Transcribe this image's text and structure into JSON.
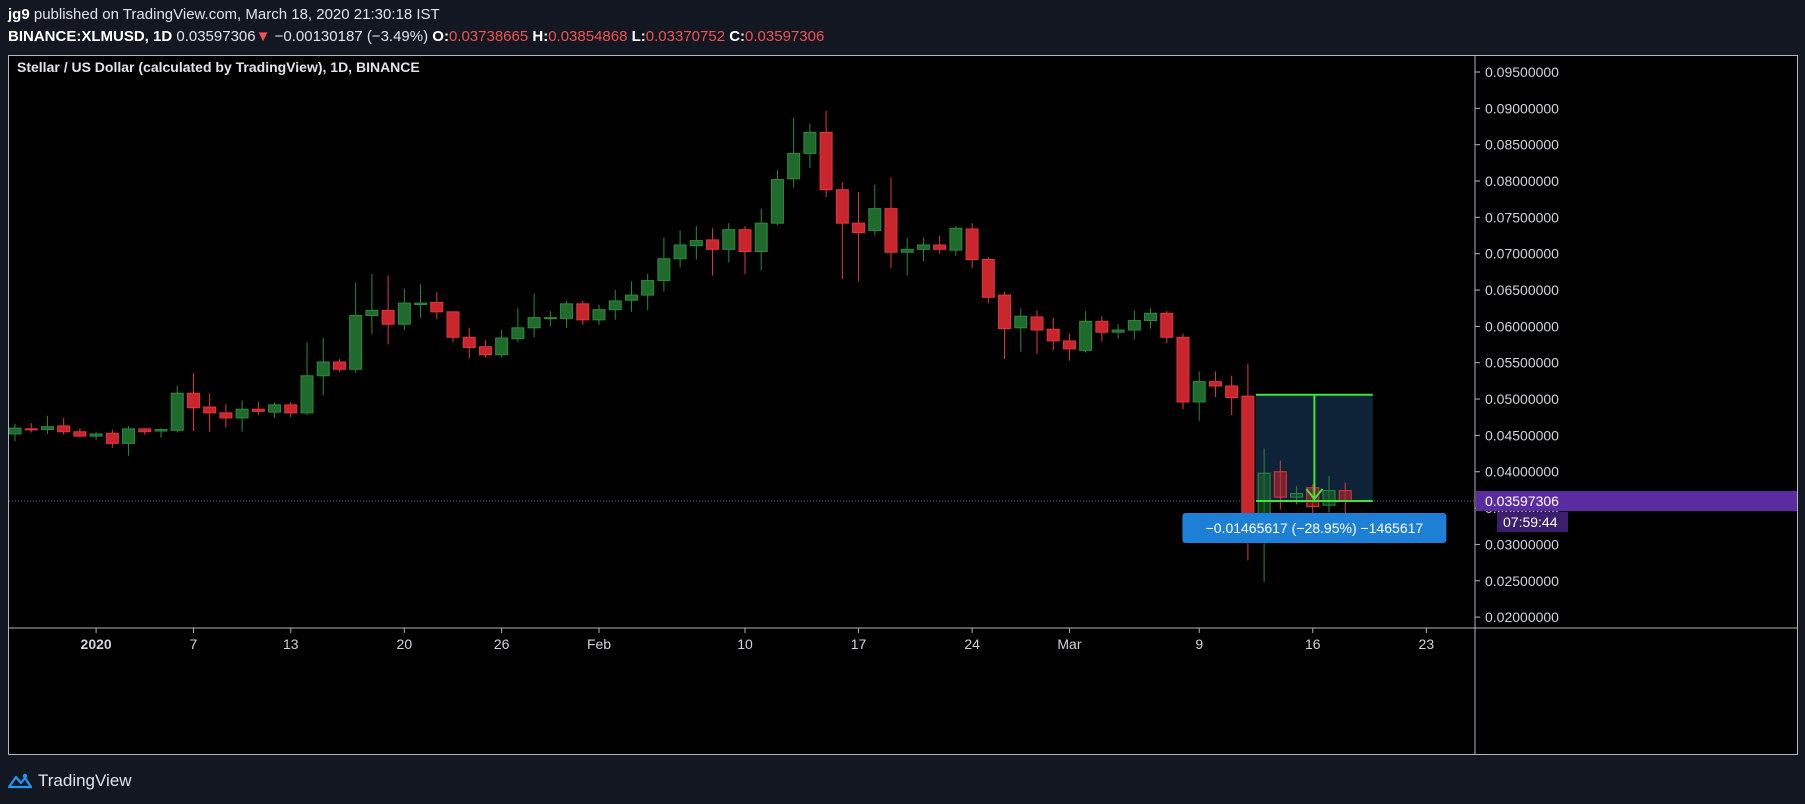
{
  "header": {
    "author": "jg9",
    "published_text": "published on TradingView.com, March 18, 2020 21:30:18 IST",
    "symbol": "BINANCE:XLMUSD, 1D",
    "last": "0.03597306",
    "change": "−0.00130187 (−3.49%)",
    "o_label": "O:",
    "o": "0.03738665",
    "h_label": "H:",
    "h": "0.03854868",
    "l_label": "L:",
    "l": "0.03370752",
    "c_label": "C:",
    "c": "0.03597306"
  },
  "footer": {
    "brand": "TradingView"
  },
  "colors": {
    "up": "#1e6b2c",
    "up_wick": "#2a8a3a",
    "down": "#c8252c",
    "down_wick": "#e03a3e",
    "grid_text": "#d1d4dc",
    "price_label_bg": "#5b2ca0",
    "measure_bg": "#1e7fd6",
    "measure_line": "#39e639"
  },
  "chart_data": {
    "type": "candlestick",
    "title": "Stellar / US Dollar (calculated by TradingView), 1D, BINANCE",
    "ylim": [
      0.0185,
      0.0972
    ],
    "y_ticks": [
      "0.02000000",
      "0.02500000",
      "0.03000000",
      "0.03500000",
      "0.04000000",
      "0.04500000",
      "0.05000000",
      "0.05500000",
      "0.06000000",
      "0.06500000",
      "0.07000000",
      "0.07500000",
      "0.08000000",
      "0.08500000",
      "0.09000000",
      "0.09500000"
    ],
    "x_ticks": [
      {
        "label": "2020",
        "day": 5
      },
      {
        "label": "7",
        "day": 11
      },
      {
        "label": "13",
        "day": 17
      },
      {
        "label": "20",
        "day": 24
      },
      {
        "label": "26",
        "day": 30
      },
      {
        "label": "Feb",
        "day": 36
      },
      {
        "label": "10",
        "day": 45
      },
      {
        "label": "17",
        "day": 52
      },
      {
        "label": "24",
        "day": 59
      },
      {
        "label": "Mar",
        "day": 65
      },
      {
        "label": "9",
        "day": 73
      },
      {
        "label": "16",
        "day": 80
      },
      {
        "label": "23",
        "day": 87
      }
    ],
    "x_range_days": [
      0,
      90
    ],
    "candles": [
      {
        "d": "2019-12-27",
        "o": 0.0452,
        "h": 0.0466,
        "l": 0.0442,
        "c": 0.046
      },
      {
        "d": "2019-12-28",
        "o": 0.0459,
        "h": 0.0467,
        "l": 0.0454,
        "c": 0.0458
      },
      {
        "d": "2019-12-29",
        "o": 0.0458,
        "h": 0.0477,
        "l": 0.0452,
        "c": 0.0462
      },
      {
        "d": "2019-12-30",
        "o": 0.0463,
        "h": 0.0474,
        "l": 0.0451,
        "c": 0.0455
      },
      {
        "d": "2019-12-31",
        "o": 0.0455,
        "h": 0.046,
        "l": 0.0447,
        "c": 0.0449
      },
      {
        "d": "2020-01-01",
        "o": 0.0449,
        "h": 0.0455,
        "l": 0.0444,
        "c": 0.0452
      },
      {
        "d": "2020-01-02",
        "o": 0.0453,
        "h": 0.0458,
        "l": 0.0433,
        "c": 0.0439
      },
      {
        "d": "2020-01-03",
        "o": 0.0439,
        "h": 0.0463,
        "l": 0.0422,
        "c": 0.0459
      },
      {
        "d": "2020-01-04",
        "o": 0.0459,
        "h": 0.046,
        "l": 0.0451,
        "c": 0.0455
      },
      {
        "d": "2020-01-05",
        "o": 0.0456,
        "h": 0.046,
        "l": 0.0447,
        "c": 0.0458
      },
      {
        "d": "2020-01-06",
        "o": 0.0457,
        "h": 0.0518,
        "l": 0.0454,
        "c": 0.0508
      },
      {
        "d": "2020-01-07",
        "o": 0.0508,
        "h": 0.0536,
        "l": 0.0456,
        "c": 0.0488
      },
      {
        "d": "2020-01-08",
        "o": 0.0489,
        "h": 0.0508,
        "l": 0.0455,
        "c": 0.0481
      },
      {
        "d": "2020-01-09",
        "o": 0.0481,
        "h": 0.0493,
        "l": 0.0461,
        "c": 0.0474
      },
      {
        "d": "2020-01-10",
        "o": 0.0474,
        "h": 0.0498,
        "l": 0.0455,
        "c": 0.0486
      },
      {
        "d": "2020-01-11",
        "o": 0.0486,
        "h": 0.0496,
        "l": 0.0478,
        "c": 0.0483
      },
      {
        "d": "2020-01-12",
        "o": 0.0482,
        "h": 0.0495,
        "l": 0.0474,
        "c": 0.0492
      },
      {
        "d": "2020-01-13",
        "o": 0.0492,
        "h": 0.0496,
        "l": 0.0475,
        "c": 0.0481
      },
      {
        "d": "2020-01-14",
        "o": 0.0481,
        "h": 0.0578,
        "l": 0.0478,
        "c": 0.0532
      },
      {
        "d": "2020-01-15",
        "o": 0.0532,
        "h": 0.0584,
        "l": 0.0505,
        "c": 0.0551
      },
      {
        "d": "2020-01-16",
        "o": 0.0551,
        "h": 0.0555,
        "l": 0.0537,
        "c": 0.0541
      },
      {
        "d": "2020-01-17",
        "o": 0.0541,
        "h": 0.066,
        "l": 0.0536,
        "c": 0.0615
      },
      {
        "d": "2020-01-18",
        "o": 0.0615,
        "h": 0.0672,
        "l": 0.0589,
        "c": 0.0622
      },
      {
        "d": "2020-01-19",
        "o": 0.0622,
        "h": 0.067,
        "l": 0.0575,
        "c": 0.0603
      },
      {
        "d": "2020-01-20",
        "o": 0.0603,
        "h": 0.0652,
        "l": 0.0595,
        "c": 0.0632
      },
      {
        "d": "2020-01-21",
        "o": 0.063,
        "h": 0.0658,
        "l": 0.0612,
        "c": 0.0632
      },
      {
        "d": "2020-01-22",
        "o": 0.0633,
        "h": 0.0647,
        "l": 0.061,
        "c": 0.062
      },
      {
        "d": "2020-01-23",
        "o": 0.062,
        "h": 0.062,
        "l": 0.0578,
        "c": 0.0585
      },
      {
        "d": "2020-01-24",
        "o": 0.0585,
        "h": 0.0598,
        "l": 0.0556,
        "c": 0.0571
      },
      {
        "d": "2020-01-25",
        "o": 0.0572,
        "h": 0.0581,
        "l": 0.0557,
        "c": 0.0561
      },
      {
        "d": "2020-01-26",
        "o": 0.0561,
        "h": 0.0595,
        "l": 0.0557,
        "c": 0.0584
      },
      {
        "d": "2020-01-27",
        "o": 0.0583,
        "h": 0.0625,
        "l": 0.0578,
        "c": 0.0598
      },
      {
        "d": "2020-01-28",
        "o": 0.0598,
        "h": 0.0645,
        "l": 0.0585,
        "c": 0.0612
      },
      {
        "d": "2020-01-29",
        "o": 0.0611,
        "h": 0.0621,
        "l": 0.06,
        "c": 0.0612
      },
      {
        "d": "2020-01-30",
        "o": 0.0611,
        "h": 0.0635,
        "l": 0.0598,
        "c": 0.0631
      },
      {
        "d": "2020-01-31",
        "o": 0.0631,
        "h": 0.0635,
        "l": 0.0602,
        "c": 0.0609
      },
      {
        "d": "2020-02-01",
        "o": 0.0609,
        "h": 0.063,
        "l": 0.0602,
        "c": 0.0623
      },
      {
        "d": "2020-02-02",
        "o": 0.0623,
        "h": 0.065,
        "l": 0.0609,
        "c": 0.0635
      },
      {
        "d": "2020-02-03",
        "o": 0.0636,
        "h": 0.0662,
        "l": 0.062,
        "c": 0.0643
      },
      {
        "d": "2020-02-04",
        "o": 0.0643,
        "h": 0.0672,
        "l": 0.0622,
        "c": 0.0663
      },
      {
        "d": "2020-02-05",
        "o": 0.0663,
        "h": 0.0722,
        "l": 0.0648,
        "c": 0.0693
      },
      {
        "d": "2020-02-06",
        "o": 0.0693,
        "h": 0.0732,
        "l": 0.0681,
        "c": 0.0712
      },
      {
        "d": "2020-02-07",
        "o": 0.0711,
        "h": 0.0738,
        "l": 0.0692,
        "c": 0.0718
      },
      {
        "d": "2020-02-08",
        "o": 0.0719,
        "h": 0.0735,
        "l": 0.067,
        "c": 0.0706
      },
      {
        "d": "2020-02-09",
        "o": 0.0706,
        "h": 0.0742,
        "l": 0.0688,
        "c": 0.0733
      },
      {
        "d": "2020-02-10",
        "o": 0.0733,
        "h": 0.0738,
        "l": 0.0672,
        "c": 0.0703
      },
      {
        "d": "2020-02-11",
        "o": 0.0703,
        "h": 0.0762,
        "l": 0.0677,
        "c": 0.0742
      },
      {
        "d": "2020-02-12",
        "o": 0.0742,
        "h": 0.0815,
        "l": 0.0739,
        "c": 0.0802
      },
      {
        "d": "2020-02-13",
        "o": 0.0803,
        "h": 0.0887,
        "l": 0.0791,
        "c": 0.0838
      },
      {
        "d": "2020-02-14",
        "o": 0.0838,
        "h": 0.0879,
        "l": 0.0818,
        "c": 0.0867
      },
      {
        "d": "2020-02-15",
        "o": 0.0867,
        "h": 0.0897,
        "l": 0.0778,
        "c": 0.0788
      },
      {
        "d": "2020-02-16",
        "o": 0.0788,
        "h": 0.0798,
        "l": 0.0665,
        "c": 0.0742
      },
      {
        "d": "2020-02-17",
        "o": 0.0742,
        "h": 0.0785,
        "l": 0.0662,
        "c": 0.0729
      },
      {
        "d": "2020-02-18",
        "o": 0.0732,
        "h": 0.0795,
        "l": 0.0725,
        "c": 0.0762
      },
      {
        "d": "2020-02-19",
        "o": 0.0762,
        "h": 0.0805,
        "l": 0.068,
        "c": 0.0702
      },
      {
        "d": "2020-02-20",
        "o": 0.0702,
        "h": 0.0722,
        "l": 0.067,
        "c": 0.0706
      },
      {
        "d": "2020-02-21",
        "o": 0.0706,
        "h": 0.0722,
        "l": 0.069,
        "c": 0.0712
      },
      {
        "d": "2020-02-22",
        "o": 0.0712,
        "h": 0.0725,
        "l": 0.07,
        "c": 0.0706
      },
      {
        "d": "2020-02-23",
        "o": 0.0705,
        "h": 0.0738,
        "l": 0.0697,
        "c": 0.0735
      },
      {
        "d": "2020-02-24",
        "o": 0.0734,
        "h": 0.0742,
        "l": 0.068,
        "c": 0.0692
      },
      {
        "d": "2020-02-25",
        "o": 0.0692,
        "h": 0.0695,
        "l": 0.0632,
        "c": 0.064
      },
      {
        "d": "2020-02-26",
        "o": 0.0643,
        "h": 0.0648,
        "l": 0.0555,
        "c": 0.0597
      },
      {
        "d": "2020-02-27",
        "o": 0.0598,
        "h": 0.0625,
        "l": 0.0565,
        "c": 0.0614
      },
      {
        "d": "2020-02-28",
        "o": 0.0613,
        "h": 0.0622,
        "l": 0.0562,
        "c": 0.0595
      },
      {
        "d": "2020-02-29",
        "o": 0.0596,
        "h": 0.0612,
        "l": 0.0567,
        "c": 0.058
      },
      {
        "d": "2020-03-01",
        "o": 0.058,
        "h": 0.059,
        "l": 0.0553,
        "c": 0.0569
      },
      {
        "d": "2020-03-02",
        "o": 0.0567,
        "h": 0.0621,
        "l": 0.0564,
        "c": 0.0607
      },
      {
        "d": "2020-03-03",
        "o": 0.0607,
        "h": 0.0614,
        "l": 0.0579,
        "c": 0.0592
      },
      {
        "d": "2020-03-04",
        "o": 0.0592,
        "h": 0.0603,
        "l": 0.0583,
        "c": 0.0595
      },
      {
        "d": "2020-03-05",
        "o": 0.0595,
        "h": 0.0622,
        "l": 0.0582,
        "c": 0.0608
      },
      {
        "d": "2020-03-06",
        "o": 0.0608,
        "h": 0.0625,
        "l": 0.0597,
        "c": 0.0618
      },
      {
        "d": "2020-03-07",
        "o": 0.0618,
        "h": 0.0621,
        "l": 0.0577,
        "c": 0.0585
      },
      {
        "d": "2020-03-08",
        "o": 0.0585,
        "h": 0.059,
        "l": 0.0486,
        "c": 0.0496
      },
      {
        "d": "2020-03-09",
        "o": 0.0496,
        "h": 0.0538,
        "l": 0.047,
        "c": 0.0524
      },
      {
        "d": "2020-03-10",
        "o": 0.0524,
        "h": 0.0538,
        "l": 0.0503,
        "c": 0.0518
      },
      {
        "d": "2020-03-11",
        "o": 0.0518,
        "h": 0.0532,
        "l": 0.0478,
        "c": 0.0502
      },
      {
        "d": "2020-03-12",
        "o": 0.0504,
        "h": 0.0548,
        "l": 0.0278,
        "c": 0.0313
      },
      {
        "d": "2020-03-13",
        "o": 0.0316,
        "h": 0.0432,
        "l": 0.0248,
        "c": 0.0398
      },
      {
        "d": "2020-03-14",
        "o": 0.04,
        "h": 0.0415,
        "l": 0.0348,
        "c": 0.0365
      },
      {
        "d": "2020-03-15",
        "o": 0.0365,
        "h": 0.038,
        "l": 0.0355,
        "c": 0.037
      },
      {
        "d": "2020-03-16",
        "o": 0.0378,
        "h": 0.0383,
        "l": 0.0338,
        "c": 0.0352
      },
      {
        "d": "2020-03-17",
        "o": 0.0354,
        "h": 0.0394,
        "l": 0.0344,
        "c": 0.0374
      },
      {
        "d": "2020-03-18",
        "o": 0.0374,
        "h": 0.0385,
        "l": 0.0337,
        "c": 0.036
      }
    ],
    "last_price": 0.03597306,
    "last_price_label": "0.03597306",
    "countdown_label": "07:59:44",
    "measure": {
      "start_day": 76.5,
      "end_day": 83.7,
      "top_price": 0.0506,
      "bottom_price": 0.03597306,
      "label": "−0.01465617 (−28.95%) −1465617"
    }
  }
}
